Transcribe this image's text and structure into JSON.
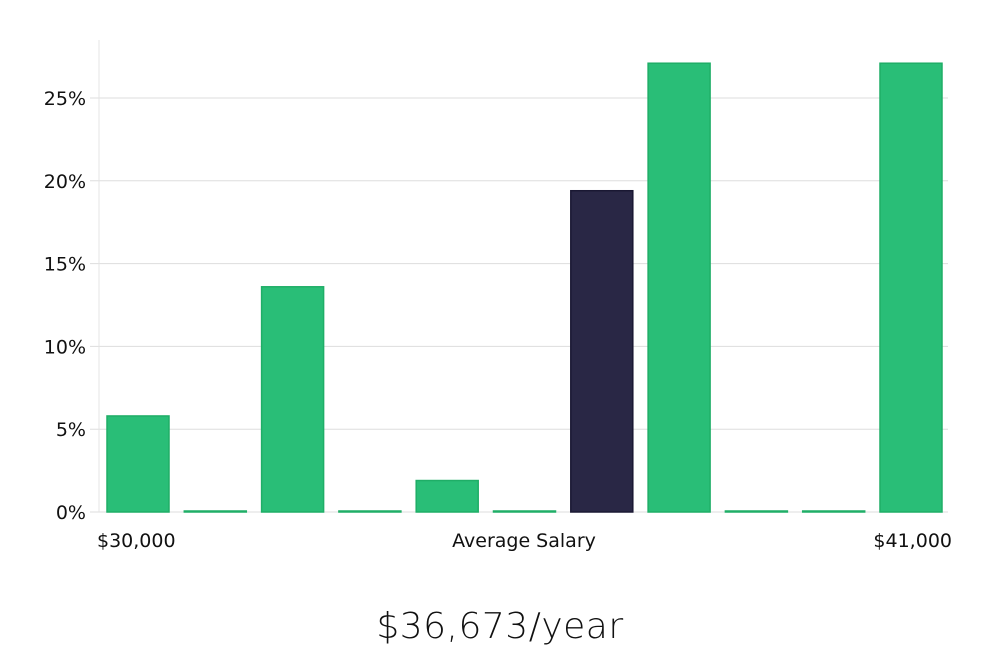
{
  "chart_data": {
    "type": "bar",
    "title": "",
    "xlabel": "Average Salary",
    "ylabel": "",
    "x_start_label": "$30,000",
    "x_end_label": "$41,000",
    "ylim": [
      0,
      28
    ],
    "y_ticks": [
      0,
      5,
      10,
      15,
      20,
      25
    ],
    "y_tick_labels": [
      "0%",
      "5%",
      "10%",
      "15%",
      "20%",
      "25%"
    ],
    "values": [
      5.8,
      0,
      13.6,
      0,
      1.9,
      0,
      19.4,
      27.1,
      0,
      0,
      27.1
    ],
    "highlight_index": 6,
    "colors": {
      "bar": "#29be77",
      "bar_edge": "#1fae67",
      "highlight": "#292745",
      "highlight_edge": "#1a1833",
      "grid": "#dddddd",
      "axis": "#e4e4e4"
    },
    "grid": true
  },
  "headline": {
    "salary": "$36,673/year"
  }
}
